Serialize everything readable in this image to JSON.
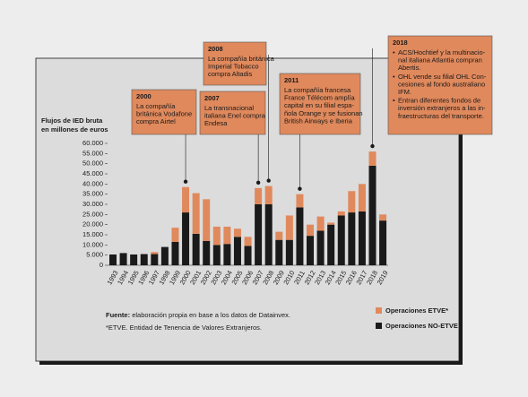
{
  "chart_data": {
    "type": "stacked_bar",
    "y_label_lines": [
      "Flujos de IED bruta",
      "en millones de euros"
    ],
    "categories": [
      "1993",
      "1994",
      "1995",
      "1996",
      "1997",
      "1998",
      "1999",
      "2000",
      "2001",
      "2002",
      "2003",
      "2004",
      "2005",
      "2006",
      "2007",
      "2008",
      "2009",
      "2010",
      "2011",
      "2012",
      "2013",
      "2014",
      "2015",
      "2016",
      "2017",
      "2018",
      "2019"
    ],
    "series": [
      {
        "name": "Operaciones ETVE*",
        "color": "#e0895c",
        "values": [
          0,
          0,
          0,
          0,
          1000,
          0,
          7000,
          12500,
          20000,
          20500,
          9000,
          8500,
          4000,
          4500,
          8000,
          9000,
          4000,
          12000,
          6500,
          5500,
          7000,
          1000,
          2000,
          10500,
          13500,
          7000,
          3000
        ]
      },
      {
        "name": "Operaciones NO-ETVE",
        "color": "#1a1a1a",
        "values": [
          5300,
          6000,
          5300,
          5500,
          5500,
          9000,
          11500,
          26000,
          15500,
          12000,
          10000,
          10500,
          14000,
          9500,
          30000,
          30000,
          12500,
          12500,
          28500,
          14500,
          17000,
          20000,
          24500,
          26000,
          26500,
          49000,
          22000
        ]
      }
    ],
    "ylim": [
      0,
      60000
    ],
    "yticks": [
      0,
      {
        "value": 5000,
        "label": "5.000"
      },
      {
        "value": 10000,
        "label": "10.000"
      },
      {
        "value": 15000,
        "label": "15.000"
      },
      {
        "value": 20000,
        "label": "20.000"
      },
      {
        "value": 25000,
        "label": "25.000"
      },
      {
        "value": 30000,
        "label": "30.000"
      },
      {
        "value": 35000,
        "label": "35.000"
      },
      {
        "value": 40000,
        "label": "40.000"
      },
      {
        "value": 45000,
        "label": "45.000"
      },
      {
        "value": 50000,
        "label": "50.000"
      },
      {
        "value": 55000,
        "label": "55.000"
      },
      {
        "value": 60000,
        "label": "60.000"
      }
    ],
    "annotations": [
      {
        "year": "2000",
        "lines": [
          "La compañía",
          "británica Vodafone",
          "compra Airtel"
        ]
      },
      {
        "year": "2008",
        "lines": [
          "La compañía británica",
          "Imperial Tobacco",
          "compra Altadis"
        ]
      },
      {
        "year": "2007",
        "lines": [
          "La transnacional",
          "italiana Enel compra",
          "Endesa"
        ]
      },
      {
        "year": "2011",
        "lines": [
          "La compañía francesa",
          "France Télécom amplía",
          "capital en su filial espa-",
          "ñola Orange y se fusionan",
          "British Airways e Iberia"
        ]
      },
      {
        "year": "2018",
        "bullets": [
          [
            "ACS/Hochtief y la multinacio-",
            "nal italiana Atlantia compran",
            "Abertis."
          ],
          [
            "OHL vende su filial OHL Con-",
            "cesiones al fondo australiano",
            "IFM."
          ],
          [
            "Entran diferentes fondos de",
            "inversión extranjeros a las in-",
            "fraestructuras del transporte."
          ]
        ]
      }
    ],
    "source_label": "Fuente:",
    "source_text": "elaboración propia en base a los datos de Datainvex.",
    "footnote": "*ETVE. Entidad de Tenencia de Valores Extranjeros."
  }
}
